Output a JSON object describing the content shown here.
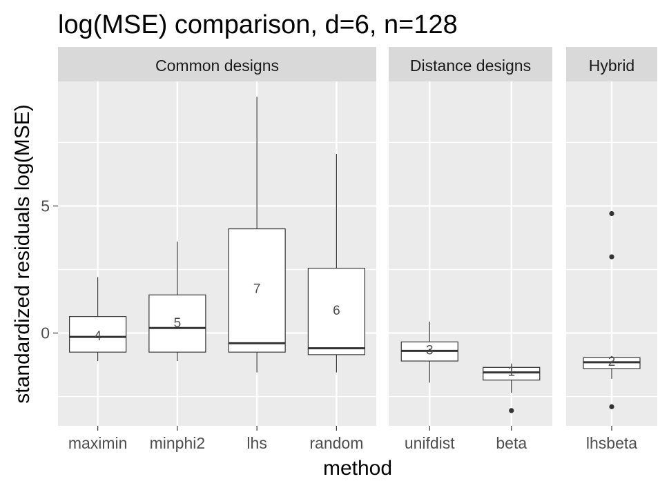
{
  "chart_data": {
    "type": "box",
    "title": "log(MSE) comparison, d=6, n=128",
    "xlabel": "method",
    "ylabel": "standardized residuals log(MSE)",
    "ylim": [
      -3.65,
      9.9
    ],
    "yticks": [
      0,
      5
    ],
    "yticks_minor": [
      -2.5,
      2.5,
      7.5
    ],
    "grid": true,
    "facets": [
      {
        "label": "Common designs",
        "methods": [
          {
            "name": "maximin",
            "q1": -0.75,
            "median": -0.15,
            "q3": 0.65,
            "whisker_low": -1.1,
            "whisker_high": 2.2,
            "outliers": [],
            "rank": "4"
          },
          {
            "name": "minphi2",
            "q1": -0.75,
            "median": 0.2,
            "q3": 1.5,
            "whisker_low": -1.1,
            "whisker_high": 3.6,
            "outliers": [],
            "rank": "5"
          },
          {
            "name": "lhs",
            "q1": -0.75,
            "median": -0.4,
            "q3": 4.1,
            "whisker_low": -1.55,
            "whisker_high": 9.3,
            "outliers": [],
            "rank": "7"
          },
          {
            "name": "random",
            "q1": -0.85,
            "median": -0.6,
            "q3": 2.55,
            "whisker_low": -1.55,
            "whisker_high": 7.05,
            "outliers": [],
            "rank": "6"
          }
        ]
      },
      {
        "label": "Distance designs",
        "methods": [
          {
            "name": "unifdist",
            "q1": -1.1,
            "median": -0.7,
            "q3": -0.35,
            "whisker_low": -1.95,
            "whisker_high": 0.45,
            "outliers": [],
            "rank": "3"
          },
          {
            "name": "beta",
            "q1": -1.85,
            "median": -1.55,
            "q3": -1.35,
            "whisker_low": -2.35,
            "whisker_high": -1.2,
            "outliers": [
              -3.05
            ],
            "rank": "1"
          }
        ]
      },
      {
        "label": "Hybrid",
        "methods": [
          {
            "name": "lhsbeta",
            "q1": -1.4,
            "median": -1.15,
            "q3": -0.97,
            "whisker_low": -1.8,
            "whisker_high": -0.9,
            "outliers": [
              4.7,
              3.0,
              -2.9
            ],
            "rank": "2"
          }
        ]
      }
    ]
  }
}
